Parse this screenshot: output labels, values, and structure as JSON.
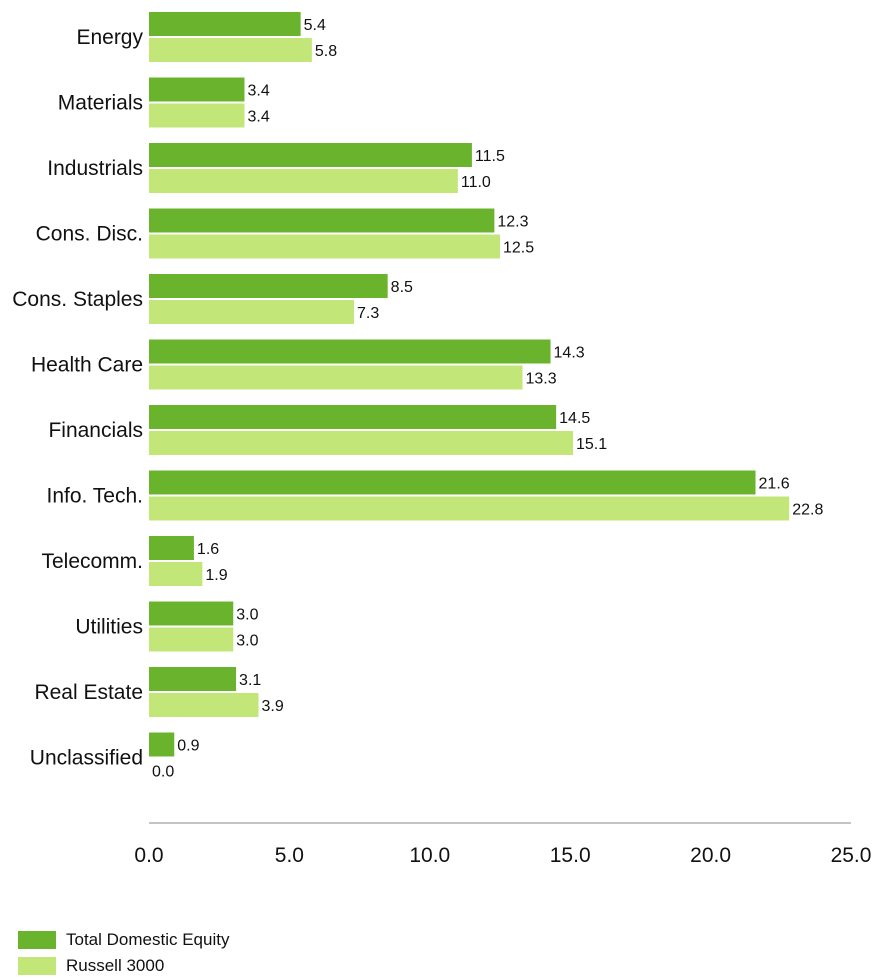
{
  "chart_data": {
    "type": "bar",
    "orientation": "horizontal",
    "categories": [
      "Energy",
      "Materials",
      "Industrials",
      "Cons. Disc.",
      "Cons. Staples",
      "Health Care",
      "Financials",
      "Info. Tech.",
      "Telecomm.",
      "Utilities",
      "Real Estate",
      "Unclassified"
    ],
    "series": [
      {
        "name": "Total Domestic Equity",
        "color": "#6ab42d",
        "values": [
          5.4,
          3.4,
          11.5,
          12.3,
          8.5,
          14.3,
          14.5,
          21.6,
          1.6,
          3.0,
          3.1,
          0.9
        ],
        "labels": [
          "5.4",
          "3.4",
          "11.5",
          "12.3",
          "8.5",
          "14.3",
          "14.5",
          "21.6",
          "1.6",
          "3.0",
          "3.1",
          "0.9"
        ]
      },
      {
        "name": "Russell 3000",
        "color": "#c3e678",
        "values": [
          5.8,
          3.4,
          11.0,
          12.5,
          7.3,
          13.3,
          15.1,
          22.8,
          1.9,
          3.0,
          3.9,
          0.0
        ],
        "labels": [
          "5.8",
          "3.4",
          "11.0",
          "12.5",
          "7.3",
          "13.3",
          "15.1",
          "22.8",
          "1.9",
          "3.0",
          "3.9",
          "0.0"
        ]
      }
    ],
    "xlim": [
      0,
      25
    ],
    "xticks": [
      "0.0",
      "5.0",
      "10.0",
      "15.0",
      "20.0",
      "25.0"
    ],
    "grid": false,
    "legend_position": "bottom-left",
    "axis_color": "#888888"
  },
  "legend": {
    "items": [
      {
        "label": "Total Domestic Equity",
        "color": "#6ab42d"
      },
      {
        "label": "Russell 3000",
        "color": "#c3e678"
      }
    ]
  }
}
